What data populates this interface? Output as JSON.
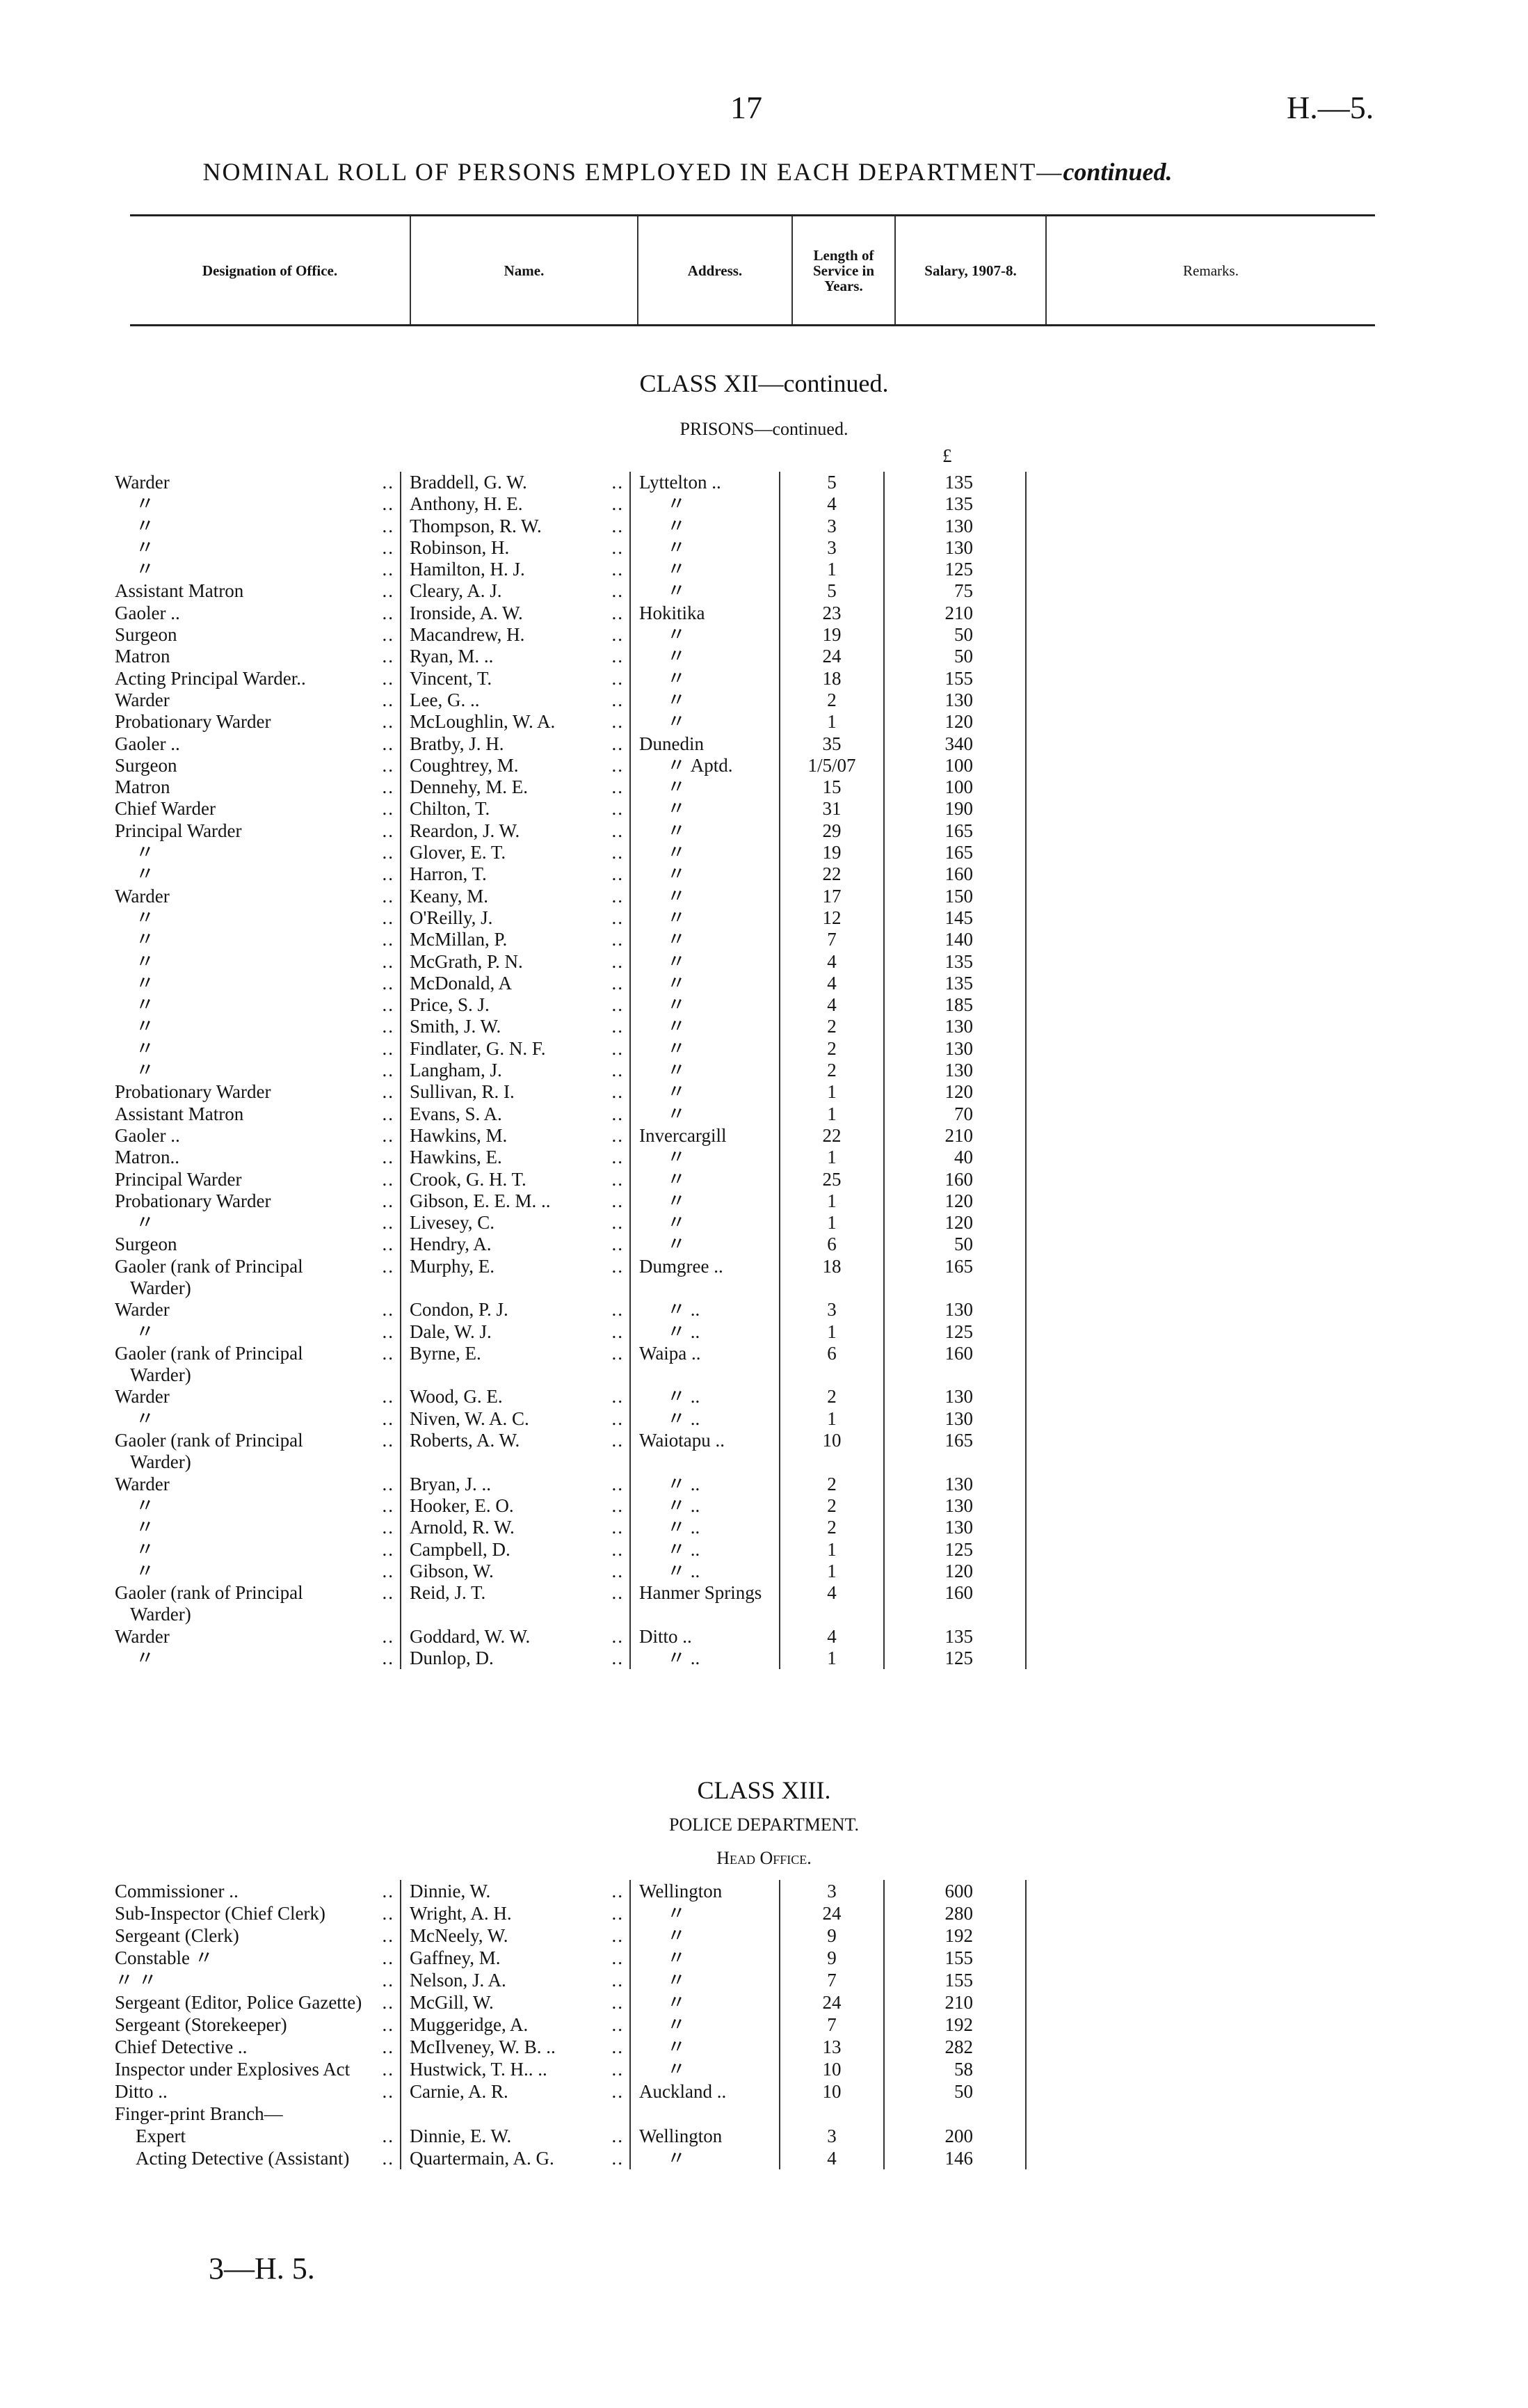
{
  "page": {
    "number": "17",
    "doc_ref": "H.—5.",
    "title": "NOMINAL ROLL OF PERSONS EMPLOYED IN EACH DEPARTMENT—",
    "title_italic": "continued.",
    "footer": "3—H. 5."
  },
  "header": [
    "Designation of Office.",
    "Name.",
    "Address.",
    "Length of Service in Years.",
    "Salary, 1907-8.",
    "Remarks."
  ],
  "ditto": "〃",
  "class12": {
    "title": "CLASS XII—continued.",
    "subtitle": "PRISONS—continued.",
    "currency": "£",
    "rows": [
      [
        "Warder",
        "Braddell, G. W.",
        "Lyttelton ..",
        "5",
        "135"
      ],
      [
        "〃",
        "Anthony, H. E.",
        "〃",
        "4",
        "135"
      ],
      [
        "〃",
        "Thompson, R. W.",
        "〃",
        "3",
        "130"
      ],
      [
        "〃",
        "Robinson, H.",
        "〃",
        "3",
        "130"
      ],
      [
        "〃",
        "Hamilton, H. J.",
        "〃",
        "1",
        "125"
      ],
      [
        "Assistant Matron",
        "Cleary, A. J.",
        "〃",
        "5",
        "75"
      ],
      [
        "Gaoler ..",
        "Ironside, A. W.",
        "Hokitika",
        "23",
        "210"
      ],
      [
        "Surgeon",
        "Macandrew, H.",
        "〃",
        "19",
        "50"
      ],
      [
        "Matron",
        "Ryan, M. ..",
        "〃",
        "24",
        "50"
      ],
      [
        "Acting Principal Warder..",
        "Vincent, T.",
        "〃",
        "18",
        "155"
      ],
      [
        "Warder",
        "Lee, G. ..",
        "〃",
        "2",
        "130"
      ],
      [
        "Probationary Warder",
        "McLoughlin, W. A.",
        "〃",
        "1",
        "120"
      ],
      [
        "Gaoler ..",
        "Bratby, J. H.",
        "Dunedin",
        "35",
        "340"
      ],
      [
        "Surgeon",
        "Coughtrey, M.",
        "〃   Aptd.",
        "1/5/07",
        "100"
      ],
      [
        "Matron",
        "Dennehy, M. E.",
        "〃",
        "15",
        "100"
      ],
      [
        "Chief Warder",
        "Chilton, T.",
        "〃",
        "31",
        "190"
      ],
      [
        "Principal Warder",
        "Reardon, J. W.",
        "〃",
        "29",
        "165"
      ],
      [
        "〃",
        "Glover, E. T.",
        "〃",
        "19",
        "165"
      ],
      [
        "〃",
        "Harron, T.",
        "〃",
        "22",
        "160"
      ],
      [
        "Warder",
        "Keany, M.",
        "〃",
        "17",
        "150"
      ],
      [
        "〃",
        "O'Reilly, J.",
        "〃",
        "12",
        "145"
      ],
      [
        "〃",
        "McMillan, P.",
        "〃",
        "7",
        "140"
      ],
      [
        "〃",
        "McGrath, P. N.",
        "〃",
        "4",
        "135"
      ],
      [
        "〃",
        "McDonald, A",
        "〃",
        "4",
        "135"
      ],
      [
        "〃",
        "Price, S. J.",
        "〃",
        "4",
        "185"
      ],
      [
        "〃",
        "Smith, J. W.",
        "〃",
        "2",
        "130"
      ],
      [
        "〃",
        "Findlater, G. N. F.",
        "〃",
        "2",
        "130"
      ],
      [
        "〃",
        "Langham, J.",
        "〃",
        "2",
        "130"
      ],
      [
        "Probationary Warder",
        "Sullivan, R. I.",
        "〃",
        "1",
        "120"
      ],
      [
        "Assistant Matron",
        "Evans, S. A.",
        "〃",
        "1",
        "70"
      ],
      [
        "Gaoler ..",
        "Hawkins, M.",
        "Invercargill",
        "22",
        "210"
      ],
      [
        "Matron..",
        "Hawkins, E.",
        "〃",
        "1",
        "40"
      ],
      [
        "Principal Warder",
        "Crook, G. H. T.",
        "〃",
        "25",
        "160"
      ],
      [
        "Probationary Warder",
        "Gibson, E. E. M. ..",
        "〃",
        "1",
        "120"
      ],
      [
        "〃",
        "Livesey, C.",
        "〃",
        "1",
        "120"
      ],
      [
        "Surgeon",
        "Hendry, A.",
        "〃",
        "6",
        "50"
      ],
      [
        "Gaoler (rank of Principal Warder)",
        "Murphy, E.",
        "Dumgree ..",
        "18",
        "165"
      ],
      [
        "Warder",
        "Condon, P. J.",
        "〃   ..",
        "3",
        "130"
      ],
      [
        "〃",
        "Dale, W. J.",
        "〃   ..",
        "1",
        "125"
      ],
      [
        "Gaoler (rank of Principal Warder)",
        "Byrne, E.",
        "Waipa   ..",
        "6",
        "160"
      ],
      [
        "Warder",
        "Wood, G. E.",
        "〃   ..",
        "2",
        "130"
      ],
      [
        "〃",
        "Niven, W. A. C.",
        "〃   ..",
        "1",
        "130"
      ],
      [
        "Gaoler (rank of Principal Warder)",
        "Roberts, A. W.",
        "Waiotapu ..",
        "10",
        "165"
      ],
      [
        "Warder",
        "Bryan, J. ..",
        "〃   ..",
        "2",
        "130"
      ],
      [
        "〃",
        "Hooker, E. O.",
        "〃   ..",
        "2",
        "130"
      ],
      [
        "〃",
        "Arnold, R. W.",
        "〃   ..",
        "2",
        "130"
      ],
      [
        "〃",
        "Campbell, D.",
        "〃   ..",
        "1",
        "125"
      ],
      [
        "〃",
        "Gibson, W.",
        "〃   ..",
        "1",
        "120"
      ],
      [
        "Gaoler (rank of Principal Warder)",
        "Reid, J. T.",
        "Hanmer Springs",
        "4",
        "160"
      ],
      [
        "Warder",
        "Goddard, W. W.",
        "Ditto   ..",
        "4",
        "135"
      ],
      [
        "〃",
        "Dunlop, D.",
        "〃   ..",
        "1",
        "125"
      ]
    ]
  },
  "class13": {
    "title": "CLASS XIII.",
    "subtitle": "POLICE DEPARTMENT.",
    "section": "Head Office.",
    "rows": [
      [
        "Commissioner ..",
        "Dinnie, W.",
        "Wellington",
        "3",
        "600"
      ],
      [
        "Sub-Inspector (Chief Clerk)",
        "Wright, A. H.",
        "〃",
        "24",
        "280"
      ],
      [
        "Sergeant (Clerk)",
        "McNeely, W.",
        "〃",
        "9",
        "192"
      ],
      [
        "Constable 〃",
        "Gaffney, M.",
        "〃",
        "9",
        "155"
      ],
      [
        "〃 〃",
        "Nelson, J. A.",
        "〃",
        "7",
        "155"
      ],
      [
        "Sergeant (Editor, Police Gazette)",
        "McGill, W.",
        "〃",
        "24",
        "210"
      ],
      [
        "Sergeant (Storekeeper)",
        "Muggeridge, A.",
        "〃",
        "7",
        "192"
      ],
      [
        "Chief Detective ..",
        "McIlveney, W. B. ..",
        "〃",
        "13",
        "282"
      ],
      [
        "Inspector under Explosives Act",
        "Hustwick, T. H.. ..",
        "〃",
        "10",
        "58"
      ],
      [
        "Ditto ..",
        "Carnie, A. R.",
        "Auckland ..",
        "10",
        "50"
      ],
      [
        "Finger-print Branch—",
        "",
        "",
        "",
        ""
      ],
      [
        "  Expert",
        "Dinnie, E. W.",
        "Wellington",
        "3",
        "200"
      ],
      [
        "  Acting Detective (Assistant)",
        "Quartermain, A. G.",
        "〃",
        "4",
        "146"
      ]
    ]
  }
}
